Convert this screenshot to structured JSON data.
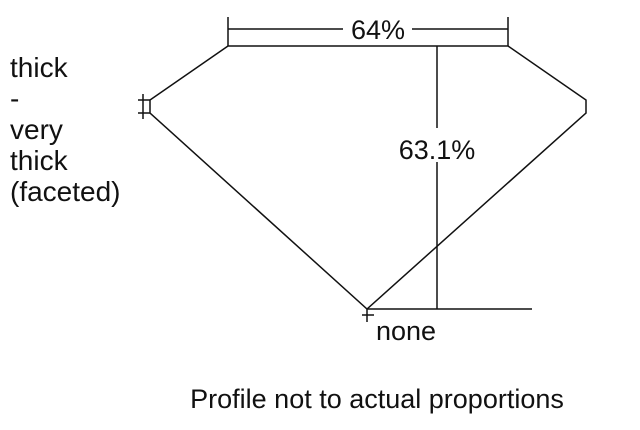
{
  "girdle_label_lines": [
    "thick",
    "-",
    "very",
    "thick",
    "(faceted)"
  ],
  "table_percent": "64%",
  "depth_percent": "63.1%",
  "culet_label": "none",
  "caption": "Profile not to actual proportions",
  "colors": {
    "line": "#111111",
    "background": "#ffffff"
  }
}
